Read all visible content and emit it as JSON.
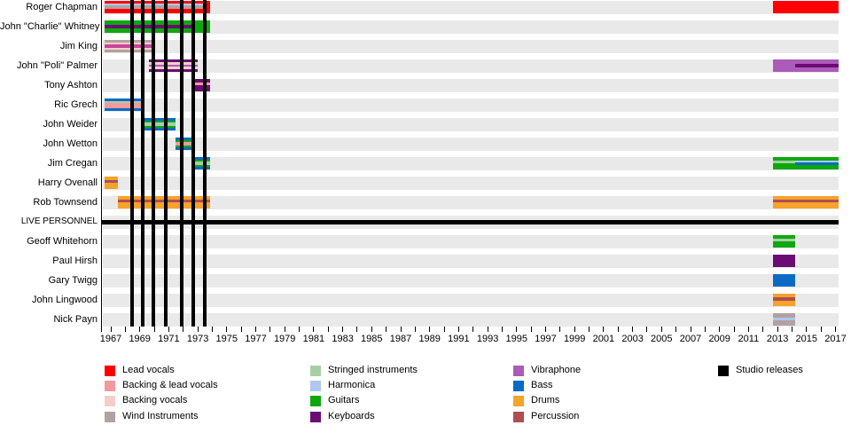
{
  "palette": {
    "lead_vocals": "#ff0000",
    "backing_lead_vocals": "#f4999c",
    "backing_vocals": "#f6cec9",
    "wind_instruments": "#b3a1a1",
    "stringed_instruments": "#a6cfa6",
    "harmonica": "#aec8ef",
    "guitars": "#0ea80e",
    "keyboards": "#6a0c74",
    "vibraphone": "#aa5cb8",
    "bass": "#0a6bc4",
    "drums": "#f6a22b",
    "percussion": "#ae4f52",
    "studio_releases": "#000000",
    "vocals_overlap_stripe": "#c9459b",
    "row_band": "#e9e9e9"
  },
  "chart_data": {
    "type": "bar",
    "subtype": "band-membership-timeline-gantt",
    "legend_position": "bottom",
    "x_axis": {
      "min_year": 1966.5,
      "max_year": 2017.2,
      "tick_every_years": 1,
      "label_every_years": 2,
      "labels": [
        "1967",
        "1969",
        "1971",
        "1973",
        "1975",
        "1977",
        "1979",
        "1981",
        "1983",
        "1985",
        "1987",
        "1989",
        "1991",
        "1993",
        "1995",
        "1997",
        "1999",
        "2001",
        "2003",
        "2005",
        "2007",
        "2009",
        "2011",
        "2013",
        "2015",
        "2017"
      ]
    },
    "studio_release_years": [
      1968.45,
      1969.2,
      1969.95,
      1970.8,
      1971.9,
      1972.7,
      1973.5
    ],
    "rows": [
      {
        "label": "Roger Chapman",
        "segments": [
          {
            "start": 1966.6,
            "end": 1973.85,
            "stripes": [
              [
                "lead_vocals",
                14
              ]
            ]
          },
          {
            "start": 1966.6,
            "end": 1973.4,
            "stripes": [
              [
                null,
                3
              ],
              [
                "harmonica",
                2
              ],
              [
                "wind_instruments",
                4
              ]
            ]
          },
          {
            "start": 2012.7,
            "end": 2017.2,
            "stripes": [
              [
                "lead_vocals",
                14
              ]
            ]
          }
        ]
      },
      {
        "label": "John \"Charlie\" Whitney",
        "segments": [
          {
            "start": 1966.6,
            "end": 1973.85,
            "stripes": [
              [
                "guitars",
                14
              ]
            ]
          },
          {
            "start": 1966.6,
            "end": 1972.8,
            "stripes": [
              [
                null,
                5
              ],
              [
                "keyboards",
                4
              ]
            ]
          }
        ]
      },
      {
        "label": "Jim King",
        "segments": [
          {
            "start": 1966.6,
            "end": 1969.8,
            "stripes": [
              [
                "wind_instruments",
                3
              ],
              [
                "backing_vocals",
                2
              ],
              [
                "vocals_overlap_stripe",
                4
              ],
              [
                "backing_vocals",
                2
              ],
              [
                "wind_instruments",
                3
              ]
            ]
          }
        ]
      },
      {
        "label": "John \"Poli\" Palmer",
        "segments": [
          {
            "start": 1969.6,
            "end": 1973.0,
            "stripes": [
              [
                "keyboards",
                3
              ],
              [
                "backing_vocals",
                3
              ],
              [
                "vibraphone",
                2
              ],
              [
                "backing_vocals",
                3
              ],
              [
                "keyboards",
                3
              ]
            ]
          },
          {
            "start": 2012.7,
            "end": 2017.2,
            "stripes": [
              [
                "vibraphone",
                14
              ]
            ]
          },
          {
            "start": 2014.2,
            "end": 2017.2,
            "stripes": [
              [
                null,
                5
              ],
              [
                "keyboards",
                4
              ]
            ]
          }
        ]
      },
      {
        "label": "Tony Ashton",
        "segments": [
          {
            "start": 1972.75,
            "end": 1973.85,
            "stripes": [
              [
                "keyboards",
                4
              ],
              [
                "backing_lead_vocals",
                3
              ],
              [
                "keyboards",
                7
              ]
            ]
          }
        ]
      },
      {
        "label": "Ric Grech",
        "segments": [
          {
            "start": 1966.6,
            "end": 1969.15,
            "stripes": [
              [
                "bass",
                3
              ],
              [
                "stringed_instruments",
                2
              ],
              [
                "backing_lead_vocals",
                6
              ],
              [
                "bass",
                3
              ]
            ]
          }
        ]
      },
      {
        "label": "John Weider",
        "segments": [
          {
            "start": 1969.15,
            "end": 1971.45,
            "stripes": [
              [
                "bass",
                3
              ],
              [
                "guitars",
                2
              ],
              [
                "stringed_instruments",
                4
              ],
              [
                "guitars",
                2
              ],
              [
                "bass",
                3
              ]
            ]
          }
        ]
      },
      {
        "label": "John Wetton",
        "segments": [
          {
            "start": 1971.45,
            "end": 1972.7,
            "stripes": [
              [
                "bass",
                3
              ],
              [
                "guitars",
                2
              ],
              [
                "backing_lead_vocals",
                4
              ],
              [
                "guitars",
                2
              ],
              [
                "bass",
                3
              ]
            ]
          }
        ]
      },
      {
        "label": "Jim Cregan",
        "segments": [
          {
            "start": 1972.7,
            "end": 1973.85,
            "stripes": [
              [
                "bass",
                3
              ],
              [
                "guitars",
                2
              ],
              [
                "stringed_instruments",
                4
              ],
              [
                "guitars",
                2
              ],
              [
                "bass",
                3
              ]
            ]
          },
          {
            "start": 2012.7,
            "end": 2017.2,
            "stripes": [
              [
                "guitars",
                14
              ]
            ]
          },
          {
            "start": 2012.7,
            "end": 2014.2,
            "stripes": [
              [
                null,
                4
              ],
              [
                "stringed_instruments",
                3
              ]
            ]
          },
          {
            "start": 2014.2,
            "end": 2017.2,
            "stripes": [
              [
                null,
                4
              ],
              [
                "harmonica",
                2
              ],
              [
                "bass",
                3
              ]
            ]
          }
        ]
      },
      {
        "label": "Harry Ovenall",
        "segments": [
          {
            "start": 1966.6,
            "end": 1967.5,
            "stripes": [
              [
                "drums",
                4
              ],
              [
                "percussion",
                3
              ],
              [
                "drums",
                7
              ]
            ]
          }
        ]
      },
      {
        "label": "Rob Townsend",
        "segments": [
          {
            "start": 1967.5,
            "end": 1973.85,
            "stripes": [
              [
                "drums",
                4
              ],
              [
                "percussion",
                3
              ],
              [
                "drums",
                7
              ]
            ]
          },
          {
            "start": 2012.7,
            "end": 2017.2,
            "stripes": [
              [
                "drums",
                4
              ],
              [
                "percussion",
                3
              ],
              [
                "drums",
                7
              ]
            ]
          }
        ]
      },
      {
        "label": "LIVE PERSONNEL",
        "divider": true,
        "segments": []
      },
      {
        "label": "Geoff Whitehorn",
        "segments": [
          {
            "start": 2012.7,
            "end": 2014.2,
            "stripes": [
              [
                "guitars",
                4
              ],
              [
                "stringed_instruments",
                3
              ],
              [
                "guitars",
                7
              ]
            ]
          }
        ]
      },
      {
        "label": "Paul Hirsh",
        "segments": [
          {
            "start": 2012.7,
            "end": 2014.2,
            "stripes": [
              [
                "keyboards",
                14
              ]
            ]
          }
        ]
      },
      {
        "label": "Gary Twigg",
        "segments": [
          {
            "start": 2012.7,
            "end": 2014.2,
            "stripes": [
              [
                "bass",
                14
              ]
            ]
          }
        ]
      },
      {
        "label": "John Lingwood",
        "segments": [
          {
            "start": 2012.7,
            "end": 2014.2,
            "stripes": [
              [
                "drums",
                4
              ],
              [
                "percussion",
                4
              ],
              [
                "drums",
                6
              ]
            ]
          }
        ]
      },
      {
        "label": "Nick Payn",
        "segments": [
          {
            "start": 2012.7,
            "end": 2014.2,
            "stripes": [
              [
                "wind_instruments",
                5
              ],
              [
                "harmonica",
                3
              ],
              [
                "wind_instruments",
                6
              ]
            ]
          }
        ]
      }
    ]
  },
  "legend": {
    "columns": [
      [
        {
          "label": "Lead vocals",
          "color": "lead_vocals"
        },
        {
          "label": "Backing & lead vocals",
          "color": "backing_lead_vocals"
        },
        {
          "label": "Backing vocals",
          "color": "backing_vocals"
        },
        {
          "label": "Wind Instruments",
          "color": "wind_instruments"
        }
      ],
      [
        {
          "label": "Stringed instruments",
          "color": "stringed_instruments"
        },
        {
          "label": "Harmonica",
          "color": "harmonica"
        },
        {
          "label": "Guitars",
          "color": "guitars"
        },
        {
          "label": "Keyboards",
          "color": "keyboards"
        }
      ],
      [
        {
          "label": "Vibraphone",
          "color": "vibraphone"
        },
        {
          "label": "Bass",
          "color": "bass"
        },
        {
          "label": "Drums",
          "color": "drums"
        },
        {
          "label": "Percussion",
          "color": "percussion"
        }
      ],
      [
        {
          "label": "Studio releases",
          "color": "studio_releases"
        }
      ]
    ]
  }
}
